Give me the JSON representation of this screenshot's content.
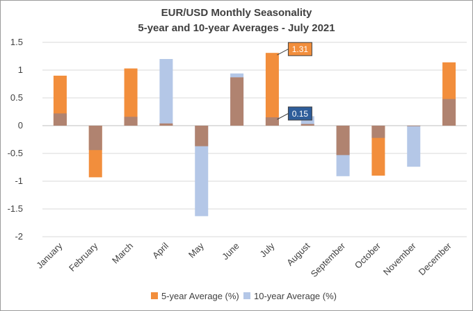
{
  "chart_data": {
    "type": "bar",
    "title": "EUR/USD Monthly  Seasonality",
    "subtitle": "5-year  and 10-year Averages  - July 2021",
    "categories": [
      "January",
      "February",
      "March",
      "April",
      "May",
      "June",
      "July",
      "August",
      "September",
      "October",
      "November",
      "December"
    ],
    "series": [
      {
        "name": "5-year Average (%)",
        "color": "#F28E3C",
        "values": [
          0.9,
          -0.93,
          1.03,
          0.04,
          -0.37,
          0.87,
          1.31,
          0.03,
          -0.53,
          -0.9,
          -0.01,
          1.14
        ]
      },
      {
        "name": "10-year Average (%)",
        "color": "#B4C7E7",
        "values": [
          0.22,
          -0.44,
          0.16,
          1.2,
          -1.63,
          0.94,
          0.15,
          0.17,
          -0.91,
          -0.22,
          -0.74,
          0.48
        ]
      }
    ],
    "overlap_color": "#B08370",
    "ylim": [
      -2,
      1.5
    ],
    "yticks": [
      "-2",
      "-1.5",
      "-1",
      "-0.5",
      "0",
      "0.5",
      "1",
      "1.5"
    ],
    "grid": true,
    "legend_position": "bottom",
    "annotations": [
      {
        "category": "July",
        "series": "5-year Average (%)",
        "text": "1.31",
        "color": "#F28E3C"
      },
      {
        "category": "July",
        "series": "10-year Average (%)",
        "text": "0.15",
        "color": "#2E5D9A"
      }
    ]
  }
}
